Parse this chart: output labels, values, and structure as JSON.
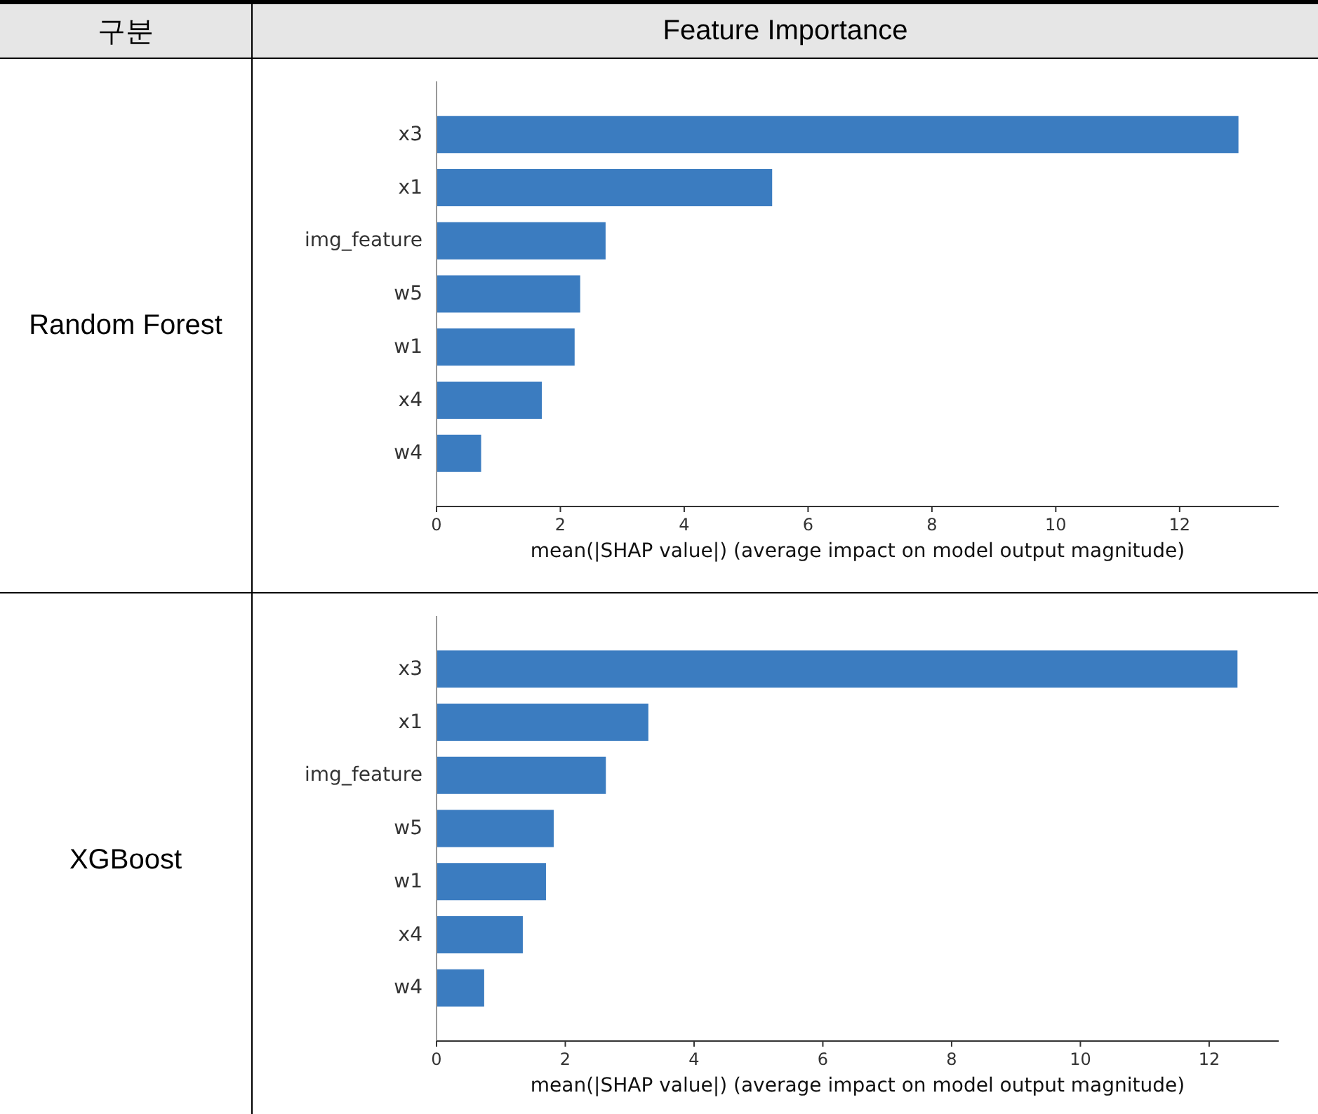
{
  "chart_data": [
    {
      "type": "bar",
      "orientation": "horizontal",
      "title": "Random Forest",
      "annotations": [
        "구분",
        "Feature Importance"
      ],
      "xlabel": "mean(|SHAP value|) (average impact on model output magnitude)",
      "categories": [
        "x3",
        "x1",
        "img_feature",
        "w5",
        "w1",
        "x4",
        "w4"
      ],
      "values": [
        12.95,
        5.42,
        2.73,
        2.32,
        2.23,
        1.7,
        0.72
      ],
      "color": "#3b7cc0",
      "xlim": [
        0,
        13.6
      ],
      "xticks": [
        0,
        2,
        4,
        6,
        8,
        10,
        12
      ]
    },
    {
      "type": "bar",
      "orientation": "horizontal",
      "title": "XGBoost",
      "xlabel": "mean(|SHAP value|) (average impact on model output magnitude)",
      "categories": [
        "x3",
        "x1",
        "img_feature",
        "w5",
        "w1",
        "x4",
        "w4"
      ],
      "values": [
        12.44,
        3.29,
        2.63,
        1.82,
        1.7,
        1.34,
        0.74
      ],
      "color": "#3b7cc0",
      "xlim": [
        0,
        13.08
      ],
      "xticks": [
        0,
        2,
        4,
        6,
        8,
        10,
        12
      ]
    }
  ]
}
